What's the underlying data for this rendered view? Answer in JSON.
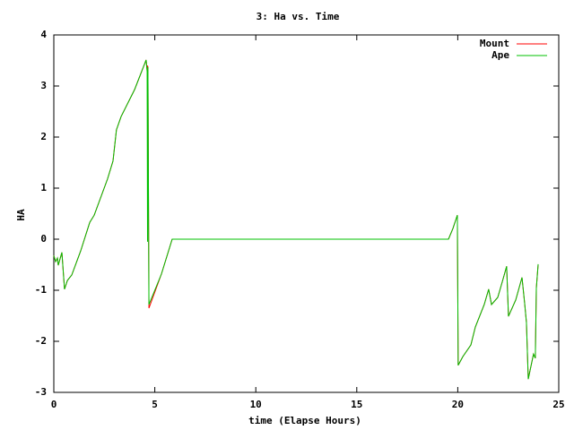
{
  "chart_data": {
    "type": "line",
    "title": "3: Ha vs. Time",
    "x_label": "time (Elapse Hours)",
    "y_label": "HA",
    "x": [
      0,
      0.09,
      0.18,
      0.22,
      0.4,
      0.53,
      0.67,
      0.89,
      1.33,
      1.78,
      2.0,
      2.66,
      2.93,
      3.1,
      3.33,
      4.0,
      4.57,
      4.62,
      4.64,
      4.66,
      4.71,
      5.33,
      5.86,
      19.54,
      19.76,
      19.98,
      20.02,
      20.25,
      20.65,
      20.87,
      21.31,
      21.53,
      21.67,
      21.98,
      22.2,
      22.42,
      22.51,
      22.87,
      23.18,
      23.31,
      23.4,
      23.49,
      23.75,
      23.84,
      23.89,
      23.98
    ],
    "series": [
      {
        "name": "Mount",
        "color": "#ff0000",
        "values": [
          -0.32,
          -0.44,
          -0.37,
          -0.51,
          -0.26,
          -0.98,
          -0.81,
          -0.7,
          -0.23,
          0.33,
          0.47,
          1.18,
          1.53,
          2.14,
          2.4,
          2.93,
          3.51,
          3.3,
          3.4,
          3.37,
          -1.35,
          -0.68,
          0,
          0,
          0.21,
          0.47,
          -2.47,
          -2.3,
          -2.07,
          -1.72,
          -1.28,
          -0.98,
          -1.28,
          -1.14,
          -0.84,
          -0.53,
          -1.51,
          -1.19,
          -0.75,
          -1.25,
          -1.63,
          -2.74,
          -2.25,
          -2.33,
          -0.96,
          -0.49
        ]
      },
      {
        "name": "Ape",
        "color": "#00c000",
        "values": [
          -0.32,
          -0.44,
          -0.37,
          -0.51,
          -0.26,
          -0.98,
          -0.81,
          -0.7,
          -0.23,
          0.33,
          0.47,
          1.18,
          1.53,
          2.14,
          2.4,
          2.93,
          3.51,
          3.28,
          -0.05,
          3.37,
          -1.28,
          -0.68,
          0,
          0,
          0.21,
          0.47,
          -2.47,
          -2.3,
          -2.07,
          -1.72,
          -1.28,
          -0.98,
          -1.28,
          -1.14,
          -0.84,
          -0.53,
          -1.51,
          -1.19,
          -0.75,
          -1.25,
          -1.63,
          -2.74,
          -2.25,
          -2.33,
          -0.96,
          -0.49
        ]
      }
    ],
    "xlim": [
      0,
      25
    ],
    "xticks": [
      0,
      5,
      10,
      15,
      20,
      25
    ],
    "ylim": [
      -3,
      4
    ],
    "yticks": [
      -3,
      -2,
      -1,
      0,
      1,
      2,
      3,
      4
    ],
    "legend": "top-right"
  }
}
